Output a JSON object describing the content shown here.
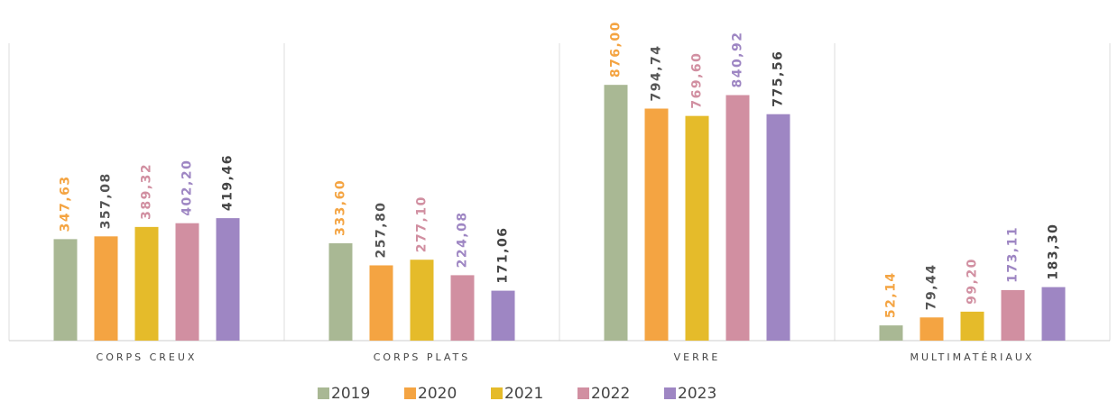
{
  "chart_data": {
    "type": "bar",
    "categories": [
      "CORPS CREUX",
      "CORPS PLATS",
      "VERRE",
      "MULTIMATÉRIAUX"
    ],
    "ylim": [
      0,
      1000
    ],
    "series": [
      {
        "name": "2019",
        "color": "#a9b894",
        "label_color": "#f4a442",
        "values": [
          347.63,
          333.6,
          876.0,
          52.14
        ],
        "value_labels": [
          "347,63",
          "333,60",
          "876,00",
          "52,14"
        ]
      },
      {
        "name": "2020",
        "color": "#f4a442",
        "label_color": "#555555",
        "values": [
          357.08,
          257.8,
          794.74,
          79.44
        ],
        "value_labels": [
          "357,08",
          "257,80",
          "794,74",
          "79,44"
        ]
      },
      {
        "name": "2021",
        "color": "#e5bb2a",
        "label_color": "#d18fa1",
        "values": [
          389.32,
          277.1,
          769.6,
          99.2
        ],
        "value_labels": [
          "389,32",
          "277,10",
          "769,60",
          "99,20"
        ]
      },
      {
        "name": "2022",
        "color": "#d18fa1",
        "label_color": "#9e86c3",
        "values": [
          402.2,
          224.08,
          840.92,
          173.11
        ],
        "value_labels": [
          "402,20",
          "224,08",
          "840,92",
          "173,11"
        ]
      },
      {
        "name": "2023",
        "color": "#9e86c3",
        "label_color": "#444444",
        "values": [
          419.46,
          171.06,
          775.56,
          183.3
        ],
        "value_labels": [
          "419,46",
          "171,06",
          "775,56",
          "183,30"
        ]
      }
    ]
  }
}
